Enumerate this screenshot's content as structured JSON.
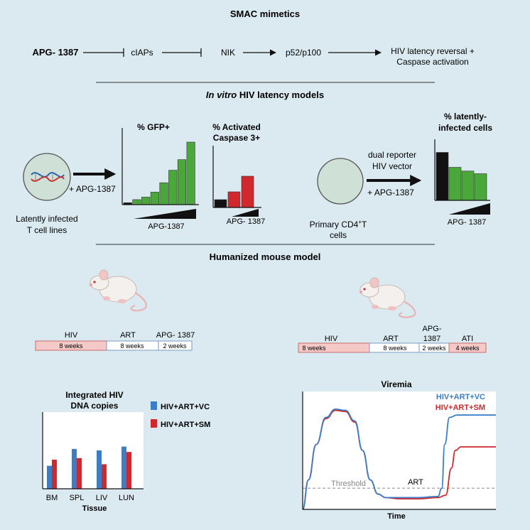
{
  "pathway": {
    "title": "SMAC mimetics",
    "drug": "APG- 1387",
    "step1": "cIAPs",
    "step2": "NIK",
    "step3": "p52/p100",
    "outcome_line1": "HIV latency reversal +",
    "outcome_line2": "Caspase activation"
  },
  "invitro": {
    "title_italic": "In vitro",
    "title_rest": " HIV latency models",
    "cell_line_label_1": "Latently infected",
    "cell_line_label_2": "T cell lines",
    "treatment_label": "+ APG-1387",
    "gfp_title": "% GFP+",
    "gfp_xlabel": "APG-1387",
    "caspase_title_1": "% Activated",
    "caspase_title_2": "Caspase 3+",
    "caspase_xlabel": "APG- 1387",
    "primary_label_1": "Primary CD4",
    "primary_sup": "+",
    "primary_label_1b": "T",
    "primary_label_2": "cells",
    "vector_label_1": "dual reporter",
    "vector_label_2": "HIV vector",
    "vector_treatment": "+ APG-1387",
    "latent_title_1": "% latently-",
    "latent_title_2": "infected cells",
    "latent_xlabel": "APG- 1387"
  },
  "mouse": {
    "title": "Humanized mouse model",
    "timeline_a": {
      "segments": [
        {
          "header": "HIV",
          "duration": "8 weeks",
          "color": "#f6c9c9"
        },
        {
          "header": "ART",
          "duration": "8 weeks",
          "color": "#ffffff"
        },
        {
          "header": "APG- 1387",
          "duration": "2 weeks",
          "color": "#ffffff"
        }
      ]
    },
    "timeline_b": {
      "segments": [
        {
          "header": "HIV",
          "duration": "8 weeks",
          "color": "#f6c9c9"
        },
        {
          "header": "ART",
          "duration": "8 weeks",
          "color": "#ffffff"
        },
        {
          "header_1": "APG-",
          "header_2": "1387",
          "duration": "2 weeks",
          "color": "#ffffff"
        },
        {
          "header": "ATI",
          "duration": "4 weeks",
          "color": "#f6c9c9"
        }
      ]
    }
  },
  "colors": {
    "green": "#4aa83a",
    "black": "#111111",
    "red": "#d0282c",
    "blue": "#3a7ec8",
    "pink": "#f6c9c9",
    "background": "#dbeaf1"
  },
  "chart_data": [
    {
      "type": "bar",
      "title": "% GFP+",
      "xlabel": "APG-1387",
      "categories": [
        "0",
        "1",
        "2",
        "3",
        "4",
        "5",
        "6",
        "7"
      ],
      "values": [
        0.03,
        0.08,
        0.12,
        0.2,
        0.35,
        0.55,
        0.72,
        1.0
      ],
      "bar_colors": [
        "#111111",
        "#4aa83a",
        "#4aa83a",
        "#4aa83a",
        "#4aa83a",
        "#4aa83a",
        "#4aa83a",
        "#4aa83a"
      ]
    },
    {
      "type": "bar",
      "title": "% Activated Caspase 3+",
      "xlabel": "APG- 1387",
      "categories": [
        "0",
        "1",
        "2"
      ],
      "values": [
        0.2,
        0.4,
        0.8
      ],
      "bar_colors": [
        "#111111",
        "#d0282c",
        "#d0282c"
      ]
    },
    {
      "type": "bar",
      "title": "% latently-infected cells",
      "xlabel": "APG- 1387",
      "categories": [
        "0",
        "1",
        "2",
        "3"
      ],
      "values": [
        0.9,
        0.62,
        0.55,
        0.5
      ],
      "bar_colors": [
        "#111111",
        "#4aa83a",
        "#4aa83a",
        "#4aa83a"
      ]
    },
    {
      "type": "bar",
      "title": "Integrated HIV DNA copies",
      "xlabel": "Tissue",
      "categories": [
        "BM",
        "SPL",
        "LIV",
        "LUN"
      ],
      "series": [
        {
          "name": "HIV+ART+VC",
          "color": "#3a7ec8",
          "values": [
            0.3,
            0.52,
            0.5,
            0.55
          ]
        },
        {
          "name": "HIV+ART+SM",
          "color": "#d0282c",
          "values": [
            0.38,
            0.4,
            0.32,
            0.48
          ]
        }
      ],
      "ylim": [
        0,
        1
      ]
    },
    {
      "type": "line",
      "title": "Viremia",
      "xlabel": "Time",
      "annotations": {
        "threshold": "Threshold",
        "phase": "ART"
      },
      "ylim": [
        0,
        1
      ],
      "xlim": [
        0,
        1
      ],
      "series": [
        {
          "name": "HIV+ART+VC",
          "color": "#3a7ec8",
          "x": [
            0,
            0.03,
            0.07,
            0.12,
            0.17,
            0.22,
            0.27,
            0.31,
            0.35,
            0.39,
            0.43,
            0.5,
            0.6,
            0.7,
            0.72,
            0.735,
            0.76,
            0.8,
            0.9,
            1.0
          ],
          "y": [
            0,
            0.25,
            0.55,
            0.78,
            0.85,
            0.84,
            0.75,
            0.5,
            0.25,
            0.13,
            0.1,
            0.1,
            0.1,
            0.11,
            0.18,
            0.55,
            0.78,
            0.8,
            0.8,
            0.8
          ]
        },
        {
          "name": "HIV+ART+SM",
          "color": "#d0282c",
          "x": [
            0,
            0.03,
            0.07,
            0.12,
            0.17,
            0.22,
            0.27,
            0.31,
            0.35,
            0.39,
            0.43,
            0.5,
            0.6,
            0.7,
            0.74,
            0.77,
            0.79,
            0.82,
            0.9,
            1.0
          ],
          "y": [
            0,
            0.25,
            0.55,
            0.77,
            0.84,
            0.83,
            0.74,
            0.5,
            0.25,
            0.13,
            0.1,
            0.09,
            0.09,
            0.1,
            0.12,
            0.35,
            0.5,
            0.53,
            0.53,
            0.53
          ]
        }
      ],
      "threshold": 0.18
    }
  ]
}
